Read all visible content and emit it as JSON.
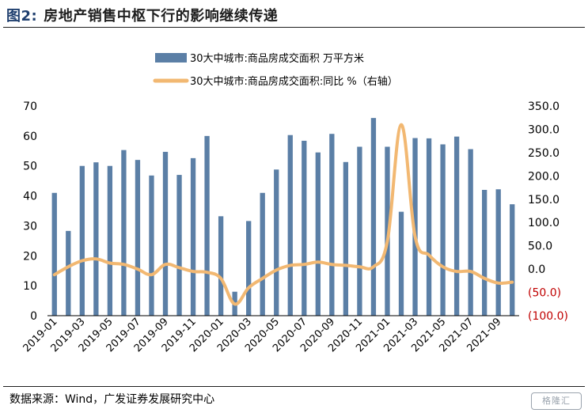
{
  "title_number": "图2:",
  "title_text": "房地产销售中枢下行的影响继续传递",
  "source_text": "数据来源：Wind，广发证券发展研究中心",
  "watermark_text": "格隆汇",
  "colors": {
    "bar": "#5b7fa6",
    "line": "#f2b872",
    "negative_tick": "#c00000",
    "axis": "#000000"
  },
  "chart_data": {
    "type": "bar",
    "categories": [
      "2019-01",
      "2019-02",
      "2019-03",
      "2019-04",
      "2019-05",
      "2019-06",
      "2019-07",
      "2019-08",
      "2019-09",
      "2019-10",
      "2019-11",
      "2019-12",
      "2020-01",
      "2020-02",
      "2020-03",
      "2020-04",
      "2020-05",
      "2020-06",
      "2020-07",
      "2020-08",
      "2020-09",
      "2020-10",
      "2020-11",
      "2020-12",
      "2021-01",
      "2021-02",
      "2021-03",
      "2021-04",
      "2021-05",
      "2021-06",
      "2021-07",
      "2021-08",
      "2021-09",
      "2021-10"
    ],
    "x_tick_labels": [
      "2019-01",
      "2019-03",
      "2019-05",
      "2019-07",
      "2019-09",
      "2019-11",
      "2020-01",
      "2020-03",
      "2020-05",
      "2020-07",
      "2020-09",
      "2020-11",
      "2021-01",
      "2021-03",
      "2021-05",
      "2021-07",
      "2021-09"
    ],
    "series": [
      {
        "name": "30大中城市:商品房成交面积 万平方米",
        "type": "bar",
        "axis": "left",
        "values": [
          41.0,
          28.3,
          50.0,
          51.2,
          50.0,
          55.3,
          52.0,
          46.8,
          54.7,
          47.0,
          52.6,
          60.0,
          33.2,
          8.0,
          31.6,
          41.0,
          48.8,
          60.3,
          58.4,
          54.5,
          60.7,
          51.3,
          56.4,
          66.0,
          56.4,
          34.7,
          59.3,
          59.2,
          57.2,
          59.8,
          55.6,
          42.0,
          42.2,
          37.2
        ]
      },
      {
        "name": "30大中城市:商品房成交面积:同比 %（右轴）",
        "type": "line",
        "axis": "right",
        "values": [
          -12,
          5,
          18,
          22,
          13,
          10,
          0,
          -12,
          10,
          3,
          -5,
          -7,
          -20,
          -75,
          -40,
          -20,
          -2,
          8,
          10,
          15,
          10,
          8,
          5,
          5,
          60,
          310,
          70,
          30,
          5,
          -5,
          -5,
          -20,
          -30,
          -28
        ]
      }
    ],
    "y_left": {
      "lim": [
        0,
        70
      ],
      "ticks": [
        "0",
        "10",
        "20",
        "30",
        "40",
        "50",
        "60",
        "70"
      ]
    },
    "y_right": {
      "lim": [
        -100,
        350
      ],
      "ticks": [
        "(100.0)",
        "(50.0)",
        "0.0",
        "50.0",
        "100.0",
        "150.0",
        "200.0",
        "250.0",
        "300.0",
        "350.0"
      ]
    },
    "legend_position": "top-center",
    "grid": false
  }
}
